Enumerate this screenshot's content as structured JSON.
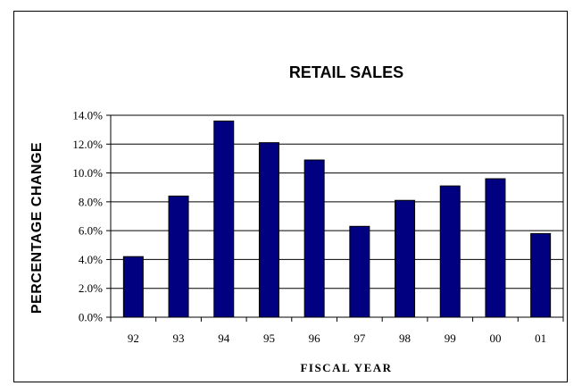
{
  "chart_data": {
    "type": "bar",
    "title": "RETAIL SALES",
    "xlabel": "FISCAL YEAR",
    "ylabel": "PERCENTAGE CHANGE",
    "categories": [
      "92",
      "93",
      "94",
      "95",
      "96",
      "97",
      "98",
      "99",
      "00",
      "01"
    ],
    "values": [
      4.2,
      8.4,
      13.6,
      12.1,
      10.9,
      6.3,
      8.1,
      9.1,
      9.6,
      5.8
    ],
    "ylim": [
      0,
      14
    ],
    "yticks": [
      "0.0%",
      "2.0%",
      "4.0%",
      "6.0%",
      "8.0%",
      "10.0%",
      "12.0%",
      "14.0%"
    ],
    "grid": true,
    "bar_color": "#000080"
  }
}
